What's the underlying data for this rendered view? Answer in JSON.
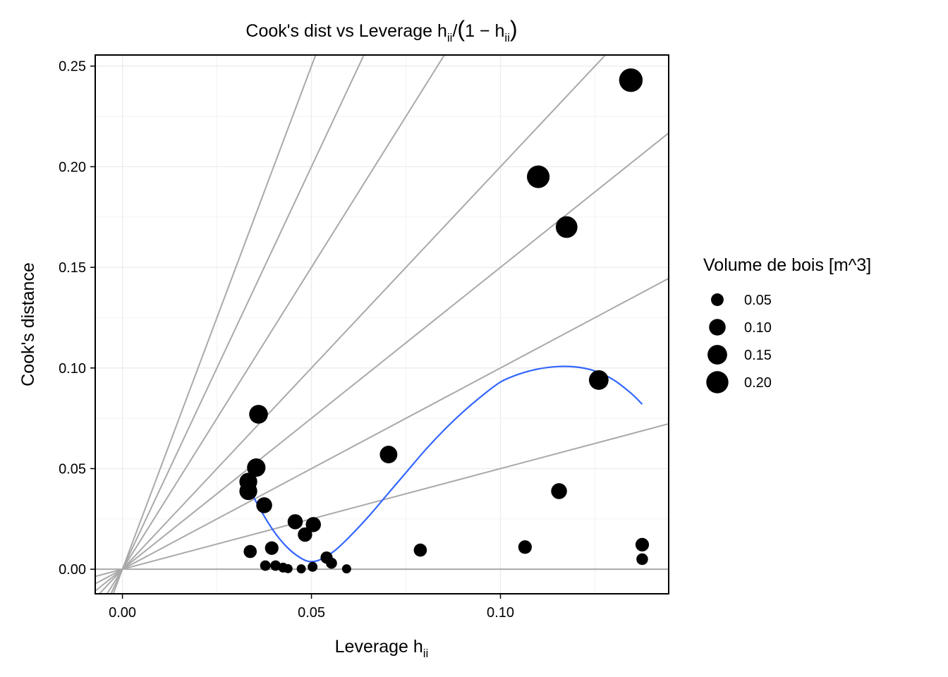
{
  "chart_data": {
    "type": "scatter",
    "title_parts": {
      "main": "Cook's dist vs Leverage h",
      "sub1": "ii",
      "slash": "/",
      "open": "(",
      "one_minus": "1 − h",
      "sub2": "ii",
      "close": ")"
    },
    "xlabel": {
      "main": "Leverage h",
      "sub": "ii"
    },
    "ylabel": "Cook's distance",
    "xlim": [
      -0.0072,
      0.1445
    ],
    "ylim": [
      -0.0122,
      0.2555
    ],
    "x_ticks": [
      0.0,
      0.05,
      0.1
    ],
    "x_tick_labels": [
      "0.00",
      "0.05",
      "0.10"
    ],
    "y_ticks": [
      0.0,
      0.05,
      0.1,
      0.15,
      0.2,
      0.25
    ],
    "y_tick_labels": [
      "0.00",
      "0.05",
      "0.10",
      "0.15",
      "0.20",
      "0.25"
    ],
    "grid": true,
    "legend": {
      "title": "Volume de bois  [m^3]",
      "position": "right",
      "entries": [
        {
          "label": "0.05",
          "value": 0.05
        },
        {
          "label": "0.10",
          "value": 0.1
        },
        {
          "label": "0.15",
          "value": 0.15
        },
        {
          "label": "0.20",
          "value": 0.2
        }
      ]
    },
    "reference_line_slopes": [
      0,
      0.5,
      1,
      1.5,
      2,
      3,
      4,
      5
    ],
    "reference_line_color": "#a9a9a9",
    "point_color": "#000000",
    "smooth_color": "#3366ff",
    "points": [
      {
        "x": 0.1345,
        "y": 0.243,
        "volume": 0.23
      },
      {
        "x": 0.11,
        "y": 0.195,
        "volume": 0.21
      },
      {
        "x": 0.1175,
        "y": 0.17,
        "volume": 0.19
      },
      {
        "x": 0.126,
        "y": 0.094,
        "volume": 0.15
      },
      {
        "x": 0.036,
        "y": 0.077,
        "volume": 0.135
      },
      {
        "x": 0.0704,
        "y": 0.057,
        "volume": 0.115
      },
      {
        "x": 0.0354,
        "y": 0.0505,
        "volume": 0.13
      },
      {
        "x": 0.0333,
        "y": 0.0435,
        "volume": 0.12
      },
      {
        "x": 0.0333,
        "y": 0.0388,
        "volume": 0.12
      },
      {
        "x": 0.1155,
        "y": 0.0388,
        "volume": 0.09
      },
      {
        "x": 0.0375,
        "y": 0.0318,
        "volume": 0.09
      },
      {
        "x": 0.0457,
        "y": 0.0236,
        "volume": 0.08
      },
      {
        "x": 0.0505,
        "y": 0.0222,
        "volume": 0.08
      },
      {
        "x": 0.0483,
        "y": 0.0172,
        "volume": 0.07
      },
      {
        "x": 0.1375,
        "y": 0.0122,
        "volume": 0.06
      },
      {
        "x": 0.1065,
        "y": 0.011,
        "volume": 0.06
      },
      {
        "x": 0.0395,
        "y": 0.0105,
        "volume": 0.06
      },
      {
        "x": 0.0788,
        "y": 0.0095,
        "volume": 0.055
      },
      {
        "x": 0.0338,
        "y": 0.0088,
        "volume": 0.055
      },
      {
        "x": 0.054,
        "y": 0.0058,
        "volume": 0.045
      },
      {
        "x": 0.1375,
        "y": 0.005,
        "volume": 0.04
      },
      {
        "x": 0.0553,
        "y": 0.003,
        "volume": 0.035
      },
      {
        "x": 0.0378,
        "y": 0.0018,
        "volume": 0.03
      },
      {
        "x": 0.0405,
        "y": 0.0018,
        "volume": 0.03
      },
      {
        "x": 0.0425,
        "y": 0.0008,
        "volume": 0.025
      },
      {
        "x": 0.0503,
        "y": 0.0012,
        "volume": 0.025
      },
      {
        "x": 0.0438,
        "y": 0.0003,
        "volume": 0.02
      },
      {
        "x": 0.0473,
        "y": 0.0002,
        "volume": 0.02
      },
      {
        "x": 0.0593,
        "y": 0.0002,
        "volume": 0.02
      }
    ],
    "smooth": {
      "x": [
        0.0335,
        0.037,
        0.04,
        0.043,
        0.046,
        0.049,
        0.052,
        0.056,
        0.06,
        0.065,
        0.07,
        0.075,
        0.08,
        0.085,
        0.09,
        0.095,
        0.1,
        0.105,
        0.11,
        0.115,
        0.12,
        0.125,
        0.13,
        0.1345,
        0.1375
      ],
      "y": [
        0.04,
        0.028,
        0.019,
        0.012,
        0.007,
        0.004,
        0.0045,
        0.009,
        0.016,
        0.026,
        0.037,
        0.048,
        0.059,
        0.069,
        0.078,
        0.086,
        0.093,
        0.097,
        0.0995,
        0.1007,
        0.1005,
        0.0985,
        0.094,
        0.0875,
        0.082
      ]
    }
  }
}
